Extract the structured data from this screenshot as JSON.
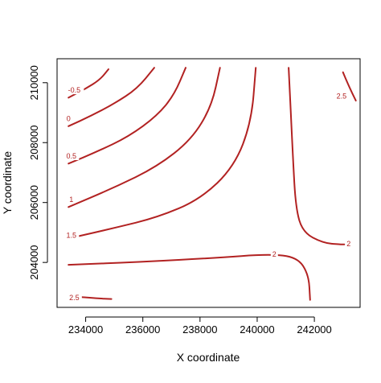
{
  "chart_data": {
    "type": "contour",
    "xlabel": "X coordinate",
    "ylabel": "Y coordinate",
    "xlim": [
      233000,
      243600
    ],
    "ylim": [
      202500,
      210800
    ],
    "x_ticks": [
      234000,
      236000,
      238000,
      240000,
      242000
    ],
    "y_ticks": [
      204000,
      206000,
      208000,
      210000
    ],
    "x_tick_labels": [
      "234000",
      "236000",
      "238000",
      "240000",
      "242000"
    ],
    "y_tick_labels": [
      "204000",
      "206000",
      "208000",
      "210000"
    ],
    "line_color": "#b22222",
    "grid": false,
    "contours": [
      {
        "level": "-0.5",
        "label_at": [
          233600,
          209750
        ],
        "points": [
          [
            233400,
            209500
          ],
          [
            234000,
            209800
          ],
          [
            234500,
            210100
          ],
          [
            234800,
            210450
          ]
        ]
      },
      {
        "level": "0",
        "label_at": [
          233400,
          208800
        ],
        "points": [
          [
            233400,
            208550
          ],
          [
            234200,
            208900
          ],
          [
            235000,
            209300
          ],
          [
            235800,
            209800
          ],
          [
            236400,
            210500
          ]
        ]
      },
      {
        "level": "0.5",
        "label_at": [
          233500,
          207550
        ],
        "points": [
          [
            233400,
            207300
          ],
          [
            234400,
            207700
          ],
          [
            235500,
            208200
          ],
          [
            236500,
            208900
          ],
          [
            237100,
            209600
          ],
          [
            237500,
            210500
          ]
        ]
      },
      {
        "level": "1",
        "label_at": [
          233500,
          206100
        ],
        "points": [
          [
            233400,
            205850
          ],
          [
            235000,
            206500
          ],
          [
            236500,
            207200
          ],
          [
            237700,
            208100
          ],
          [
            238400,
            209200
          ],
          [
            238700,
            210500
          ]
        ]
      },
      {
        "level": "1.5",
        "label_at": [
          233500,
          204900
        ],
        "points": [
          [
            233400,
            204800
          ],
          [
            235000,
            205150
          ],
          [
            236500,
            205500
          ],
          [
            238000,
            206100
          ],
          [
            239200,
            207200
          ],
          [
            239800,
            208700
          ],
          [
            239950,
            210500
          ]
        ]
      },
      {
        "level": "2",
        "label_at": [
          240600,
          204270
        ],
        "points": [
          [
            233400,
            203920
          ],
          [
            236000,
            204020
          ],
          [
            238500,
            204150
          ],
          [
            240400,
            204280
          ],
          [
            241400,
            204180
          ],
          [
            241800,
            203600
          ],
          [
            241850,
            202750
          ]
        ]
      },
      {
        "level": "2",
        "label_at": [
          243200,
          204620
        ],
        "points": [
          [
            241100,
            210500
          ],
          [
            241250,
            207500
          ],
          [
            241350,
            205800
          ],
          [
            241600,
            205000
          ],
          [
            242300,
            204650
          ],
          [
            242900,
            204600
          ],
          [
            243050,
            204600
          ]
        ]
      },
      {
        "level": "2.5",
        "label_at": [
          233600,
          202820
        ],
        "points": [
          [
            233400,
            202850
          ],
          [
            233800,
            202850
          ],
          [
            234400,
            202800
          ],
          [
            234900,
            202780
          ]
        ]
      },
      {
        "level": "2.5",
        "label_at": [
          242950,
          209550
        ],
        "points": [
          [
            243000,
            210350
          ],
          [
            243200,
            209900
          ],
          [
            243450,
            209400
          ]
        ]
      }
    ]
  }
}
